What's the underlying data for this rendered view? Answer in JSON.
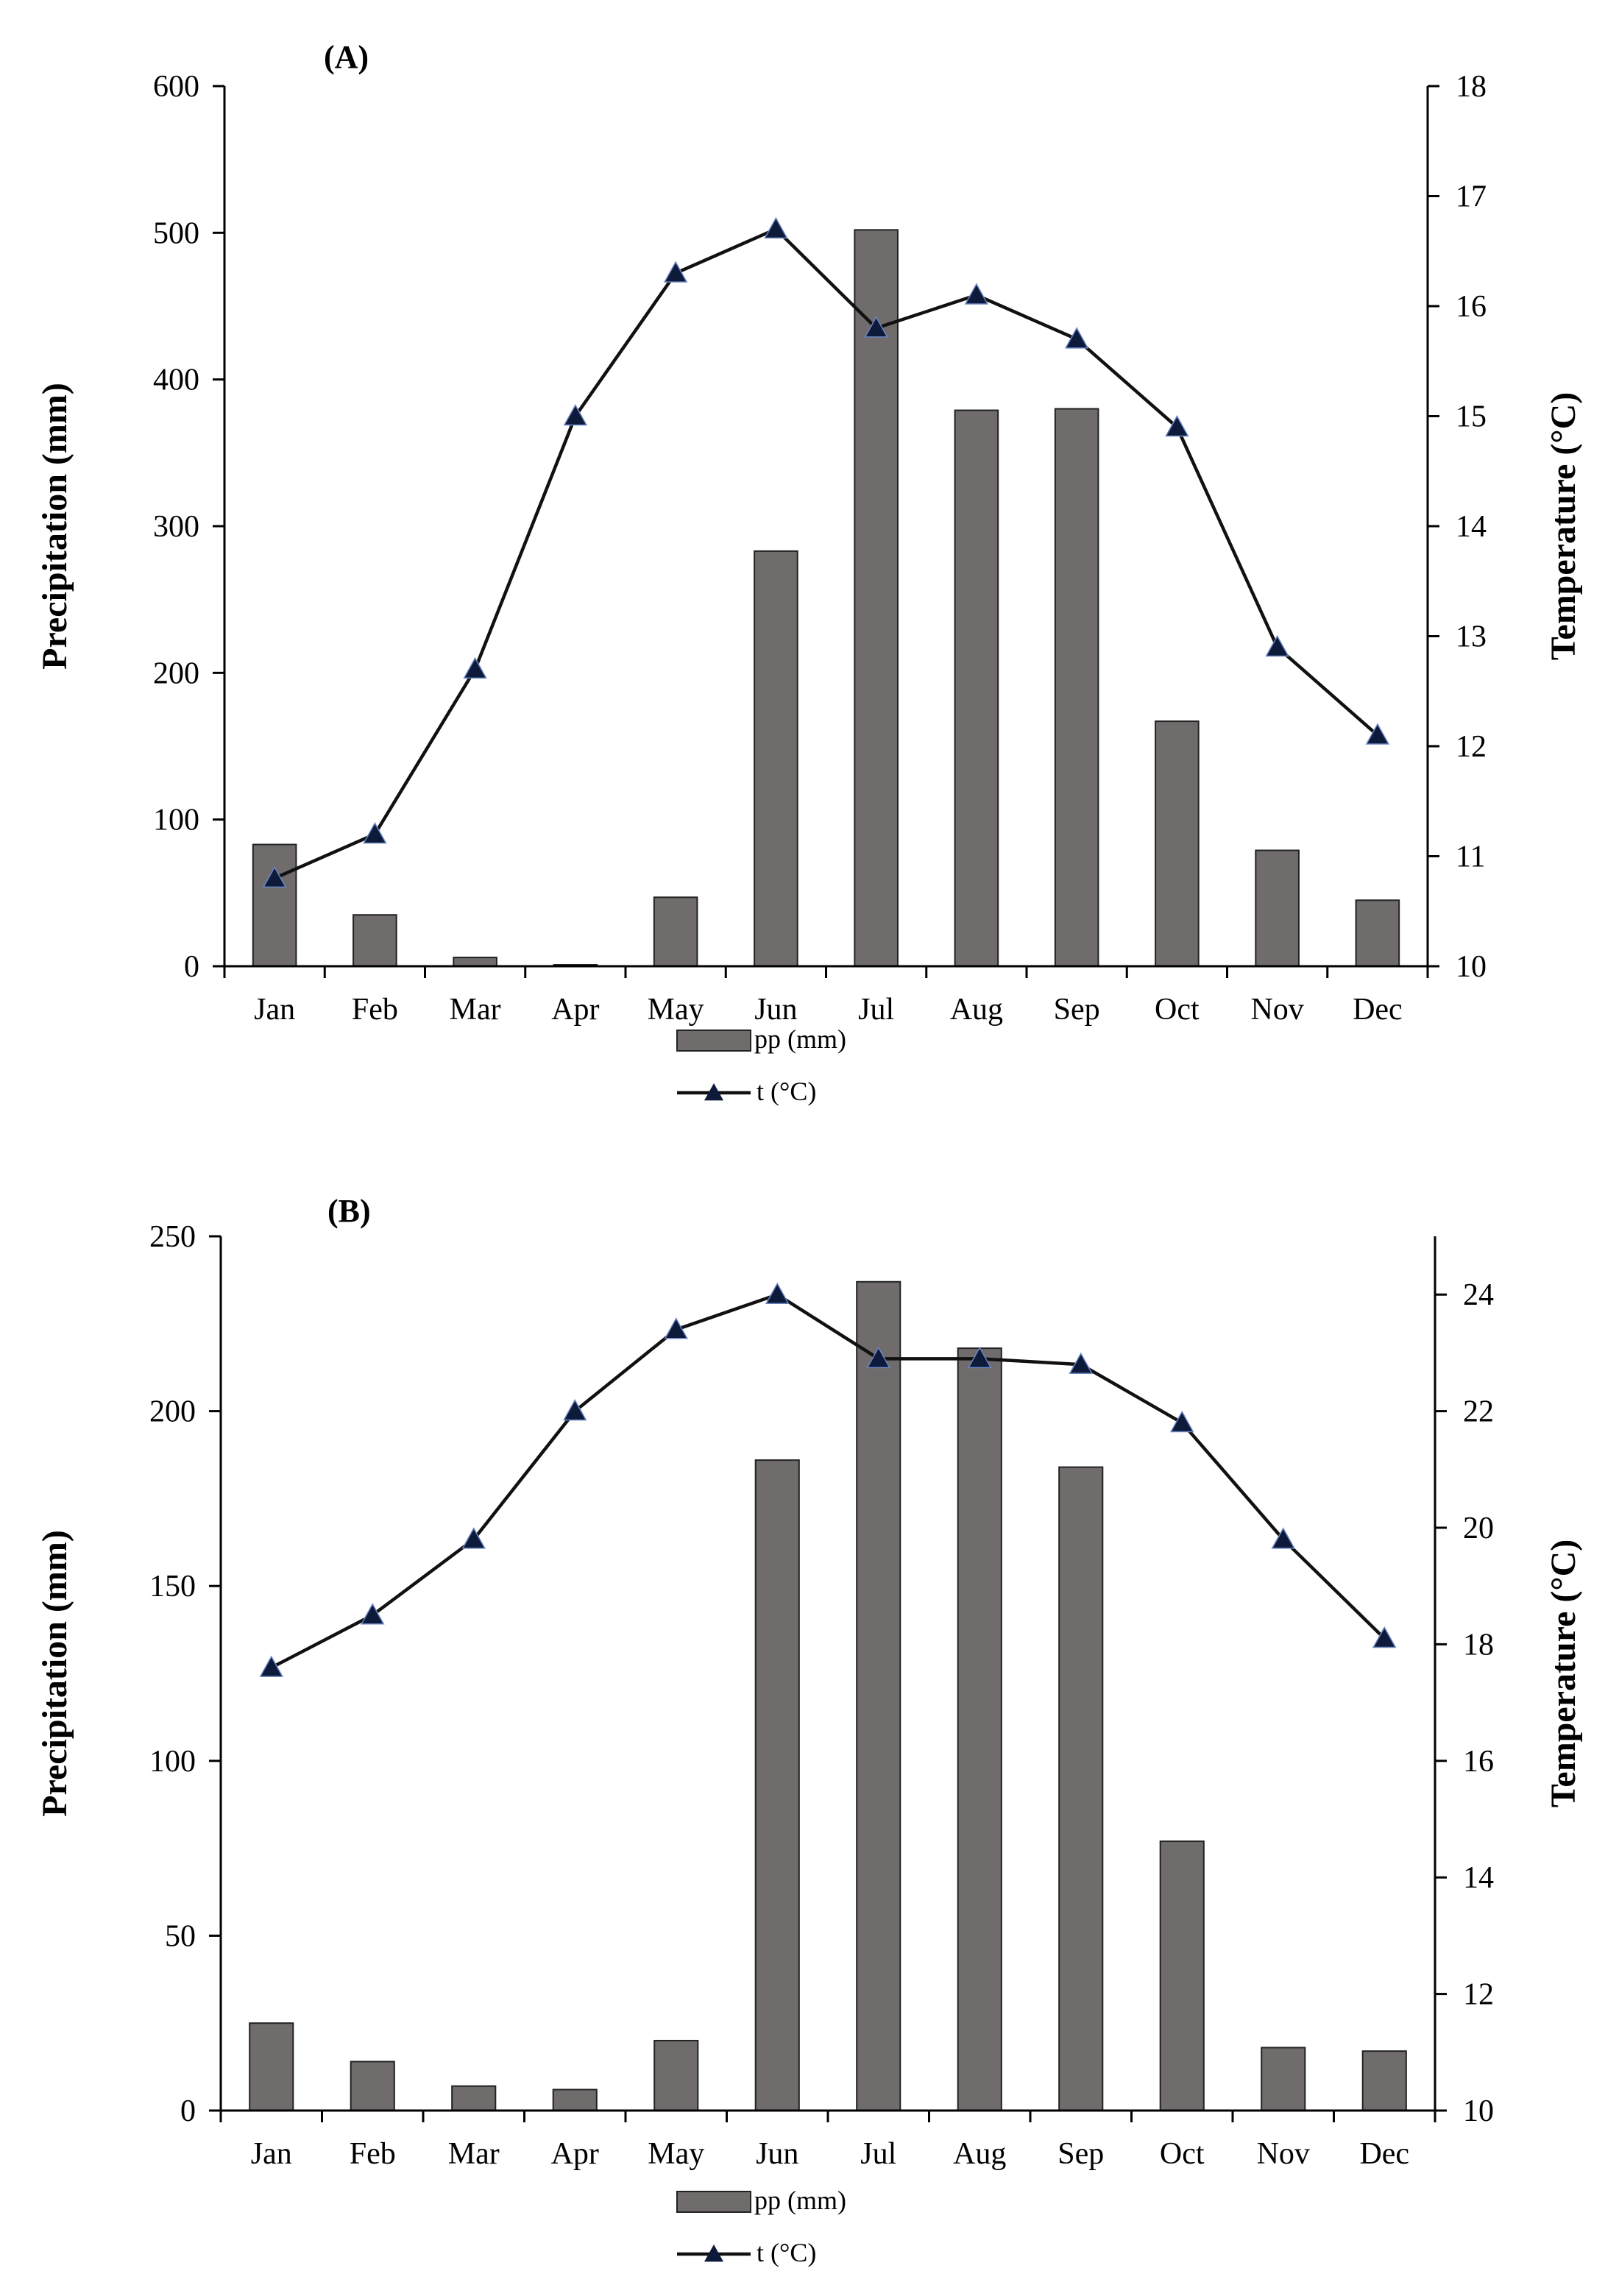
{
  "colors": {
    "bar": "#706c6c",
    "bar_stroke": "#222222",
    "line": "#111111",
    "marker": "#0d1a3a"
  },
  "chart_data": [
    {
      "panel_label": "(A)",
      "type": "bar+line",
      "categories": [
        "Jan",
        "Feb",
        "Mar",
        "Apr",
        "May",
        "Jun",
        "Jul",
        "Aug",
        "Sep",
        "Oct",
        "Nov",
        "Dec"
      ],
      "ylabel": "Precipitation (mm)",
      "y2label": "Temperature (°C)",
      "ylim": [
        0,
        600
      ],
      "yticks": [
        0,
        100,
        200,
        300,
        400,
        500,
        600
      ],
      "y2lim": [
        10,
        18
      ],
      "y2ticks": [
        10,
        11,
        12,
        13,
        14,
        15,
        16,
        17,
        18
      ],
      "grid": false,
      "legend_position": "bottom-center",
      "series": [
        {
          "name": "pp (mm)",
          "type": "bar",
          "axis": "left",
          "values": [
            83,
            35,
            6,
            1,
            47,
            283,
            502,
            379,
            380,
            167,
            79,
            45
          ]
        },
        {
          "name": "t (°C)",
          "type": "line",
          "axis": "right",
          "marker": "triangle",
          "values": [
            10.8,
            11.2,
            12.7,
            15.0,
            16.3,
            16.7,
            15.8,
            16.1,
            15.7,
            14.9,
            12.9,
            12.1
          ]
        }
      ]
    },
    {
      "panel_label": "(B)",
      "type": "bar+line",
      "categories": [
        "Jan",
        "Feb",
        "Mar",
        "Apr",
        "May",
        "Jun",
        "Jul",
        "Aug",
        "Sep",
        "Oct",
        "Nov",
        "Dec"
      ],
      "ylabel": "Precipitation (mm)",
      "y2label": "Temperature (°C)",
      "ylim": [
        0,
        250
      ],
      "yticks": [
        0,
        50,
        100,
        150,
        200,
        250
      ],
      "y2lim": [
        10,
        25
      ],
      "y2ticks": [
        10,
        12,
        14,
        16,
        18,
        20,
        22,
        24
      ],
      "grid": false,
      "legend_position": "bottom-center",
      "series": [
        {
          "name": "pp (mm)",
          "type": "bar",
          "axis": "left",
          "values": [
            25,
            14,
            7,
            6,
            20,
            186,
            237,
            218,
            184,
            77,
            18,
            17
          ]
        },
        {
          "name": "t (°C)",
          "type": "line",
          "axis": "right",
          "marker": "triangle",
          "values": [
            17.6,
            18.5,
            19.8,
            22.0,
            23.4,
            24.0,
            22.9,
            22.9,
            22.8,
            21.8,
            19.8,
            18.1
          ]
        }
      ]
    }
  ]
}
